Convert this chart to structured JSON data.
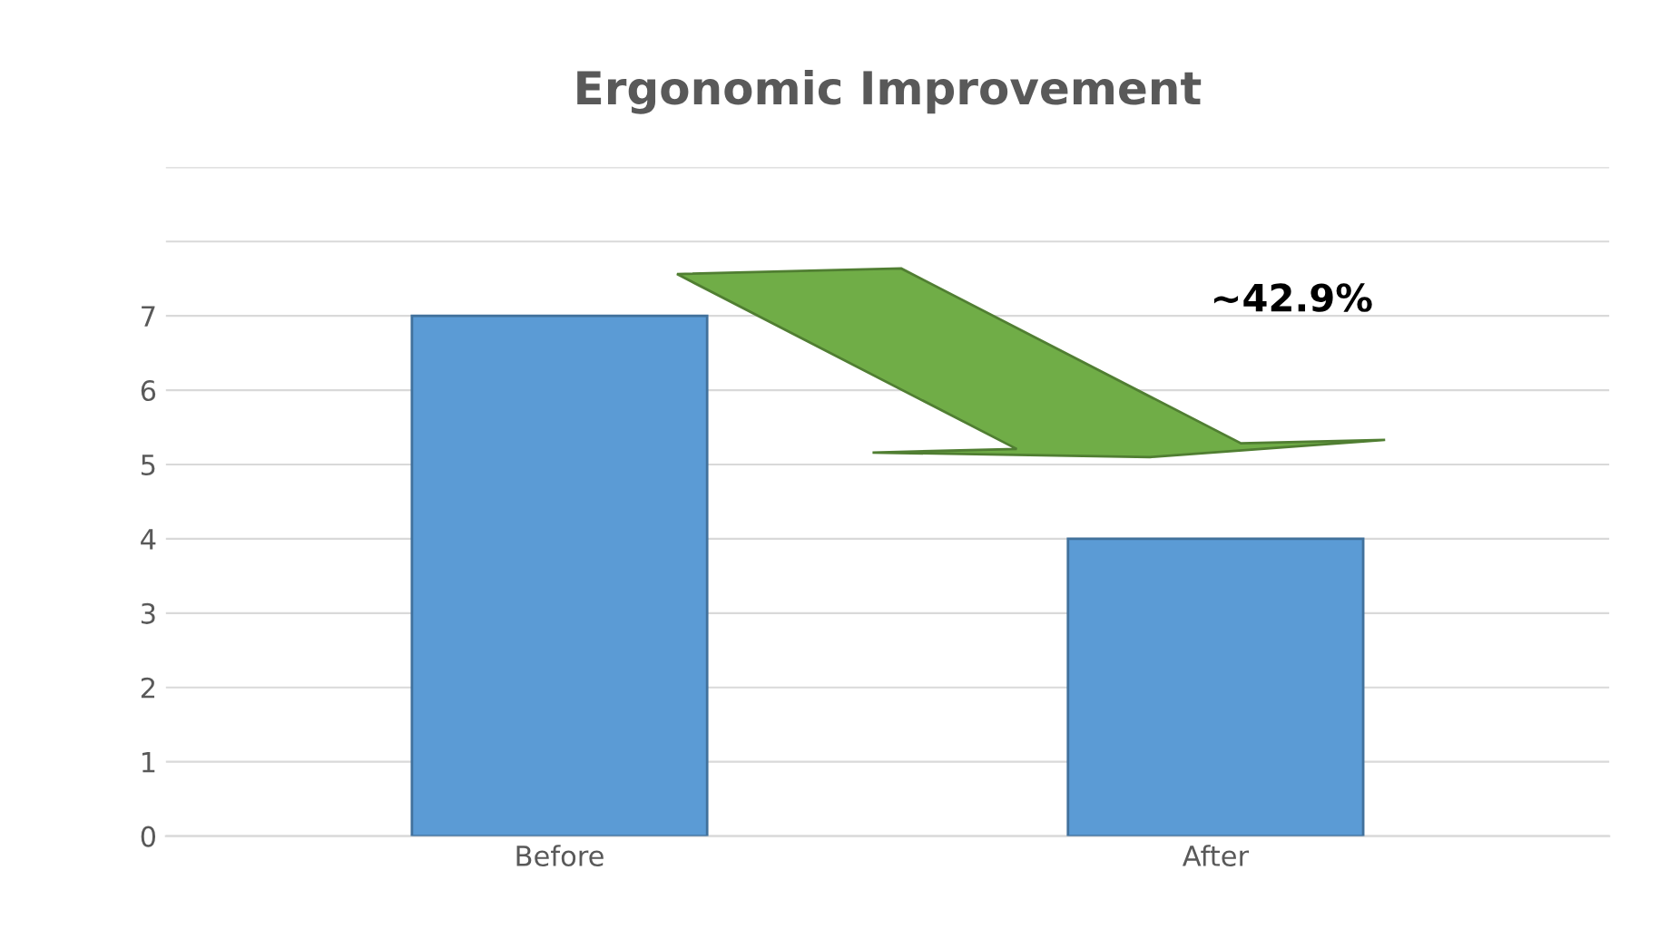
{
  "chart_data": {
    "type": "bar",
    "title": "Ergonomic Improvement",
    "categories": [
      "Before",
      "After"
    ],
    "values": [
      7,
      4
    ],
    "color": "#5b9bd5",
    "ylim": [
      0,
      9
    ],
    "yticks": [
      0,
      1,
      2,
      3,
      4,
      5,
      6,
      7,
      {
        "value": 8,
        "label": null
      },
      {
        "value": 9,
        "label": null
      }
    ],
    "grid": "y",
    "annotations": [
      "~42.9%"
    ]
  }
}
